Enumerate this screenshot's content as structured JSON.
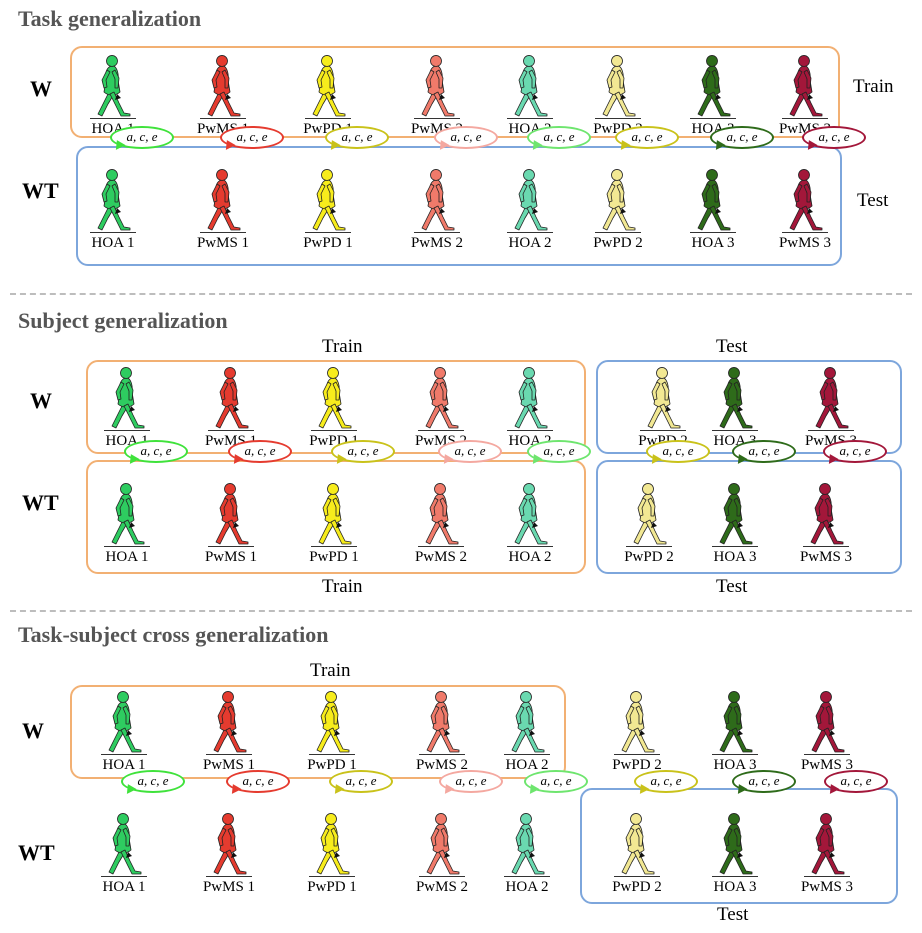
{
  "colors": {
    "HOA 1": "#2ecc60",
    "PwMS 1": "#e53b2f",
    "PwPD 1": "#f7ec1c",
    "PwMS 2": "#f07a6a",
    "HOA 2": "#6ad9b0",
    "PwPD 2": "#f2e893",
    "HOA 3": "#2e6b1a",
    "PwMS 3": "#a3173a"
  },
  "bubble_colors": {
    "HOA 1": "#3fe23b",
    "PwMS 1": "#e53b2f",
    "PwPD 1": "#c9c21a",
    "PwMS 2": "#f4a8a0",
    "HOA 2": "#6ee56e",
    "PwPD 2": "#c9c21a",
    "HOA 3": "#2e6b1a",
    "PwMS 3": "#a3173a"
  },
  "bubble_text": "a, c, e",
  "sections": [
    {
      "title": "Task generalization",
      "rows": [
        {
          "label": "W",
          "subjects": [
            "HOA 1",
            "PwMS 1",
            "PwPD 1",
            "PwMS 2",
            "HOA 2",
            "PwPD 2",
            "HOA 3",
            "PwMS 3"
          ],
          "boxes": [
            {
              "kind": "train",
              "label": "Train"
            }
          ]
        },
        {
          "label": "WT",
          "subjects": [
            "HOA 1",
            "PwMS 1",
            "PwPD 1",
            "PwMS 2",
            "HOA 2",
            "PwPD 2",
            "HOA 3",
            "PwMS 3"
          ],
          "boxes": [
            {
              "kind": "test",
              "label": "Test"
            }
          ]
        }
      ]
    },
    {
      "title": "Subject generalization",
      "rows": [
        {
          "label": "W",
          "subjects": [
            "HOA 1",
            "PwMS 1",
            "PwPD 1",
            "PwMS 2",
            "HOA 2",
            "PwPD 2",
            "HOA 3",
            "PwMS 3"
          ],
          "boxes": [
            {
              "kind": "train",
              "label": "Train"
            },
            {
              "kind": "test",
              "label": "Test"
            }
          ]
        },
        {
          "label": "WT",
          "subjects": [
            "HOA 1",
            "PwMS 1",
            "PwPD 1",
            "PwMS 2",
            "HOA 2",
            "PwPD 2",
            "HOA 3",
            "PwMS 3"
          ],
          "boxes": [
            {
              "kind": "train",
              "label": "Train"
            },
            {
              "kind": "test",
              "label": "Test"
            }
          ]
        }
      ]
    },
    {
      "title": "Task-subject cross generalization",
      "rows": [
        {
          "label": "W",
          "subjects": [
            "HOA 1",
            "PwMS 1",
            "PwPD 1",
            "PwMS 2",
            "HOA 2",
            "PwPD 2",
            "HOA 3",
            "PwMS 3"
          ],
          "boxes": [
            {
              "kind": "train",
              "label": "Train"
            }
          ]
        },
        {
          "label": "WT",
          "subjects": [
            "HOA 1",
            "PwMS 1",
            "PwPD 1",
            "PwMS 2",
            "HOA 2",
            "PwPD 2",
            "HOA 3",
            "PwMS 3"
          ],
          "boxes": [
            {
              "kind": "test",
              "label": "Test"
            }
          ]
        }
      ]
    }
  ]
}
